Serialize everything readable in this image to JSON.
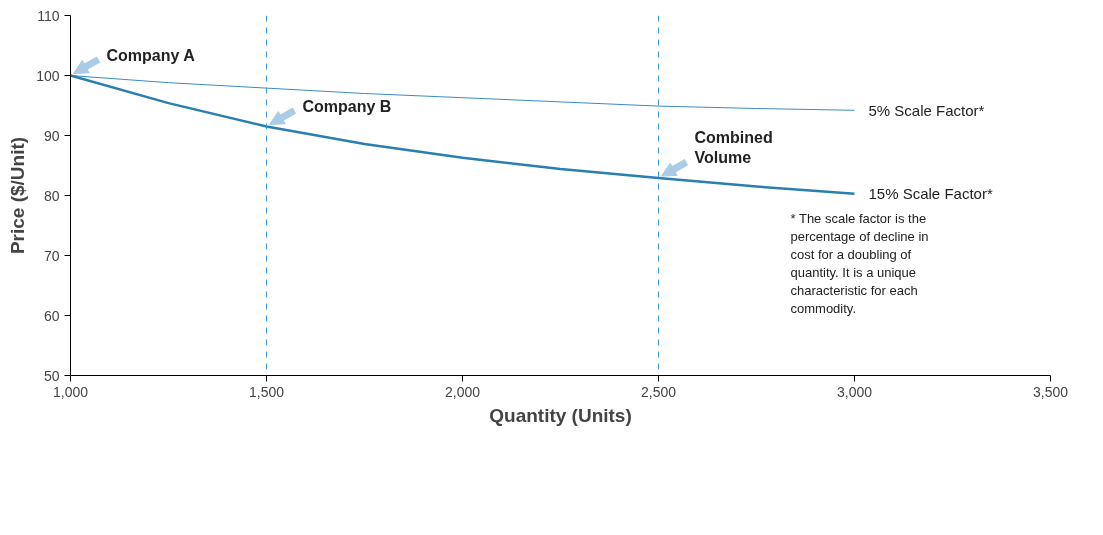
{
  "chart_data": {
    "type": "line",
    "xlabel": "Quantity (Units)",
    "ylabel": "Price ($/Unit)",
    "x": [
      1000,
      1250,
      1500,
      1750,
      2000,
      2250,
      2500,
      2750,
      3000
    ],
    "series": [
      {
        "name": "5% Scale Factor*",
        "color": "#3a8cc0",
        "values": [
          100,
          98.8,
          97.9,
          97.0,
          96.3,
          95.6,
          94.9,
          94.5,
          94.2
        ]
      },
      {
        "name": "15% Scale Factor*",
        "color": "#2a7fb0",
        "values": [
          100,
          95.4,
          91.5,
          88.6,
          86.3,
          84.4,
          82.9,
          81.5,
          80.3
        ]
      }
    ],
    "xlim": [
      1000,
      3500
    ],
    "ylim": [
      50,
      110
    ],
    "xticks": [
      {
        "value": 1000,
        "label": "1,000"
      },
      {
        "value": 1500,
        "label": "1,500"
      },
      {
        "value": 2000,
        "label": "2,000"
      },
      {
        "value": 2500,
        "label": "2,500"
      },
      {
        "value": 3000,
        "label": "3,000"
      },
      {
        "value": 3500,
        "label": "3,500"
      }
    ],
    "yticks": [
      50,
      60,
      70,
      80,
      90,
      100,
      110
    ],
    "ref_lines": [
      {
        "axis": "x",
        "value": 1500,
        "color": "#3a9bd0",
        "line_style": "dashed"
      },
      {
        "axis": "x",
        "value": 2500,
        "color": "#3a9bd0",
        "line_style": "dashed"
      }
    ],
    "annotations": [
      {
        "text": "Company A",
        "x": 1000,
        "y": 100
      },
      {
        "text": "Company B",
        "x": 1500,
        "y": 91.5
      },
      {
        "text": "Combined Volume",
        "x": 2500,
        "y": 82.9
      },
      "* The scale factor is the percentage of decline in cost for a doubling of quantity. It is a unique characteristic for each commodity."
    ],
    "grid": false,
    "legend": false,
    "marker": "none",
    "line_style": "solid"
  }
}
